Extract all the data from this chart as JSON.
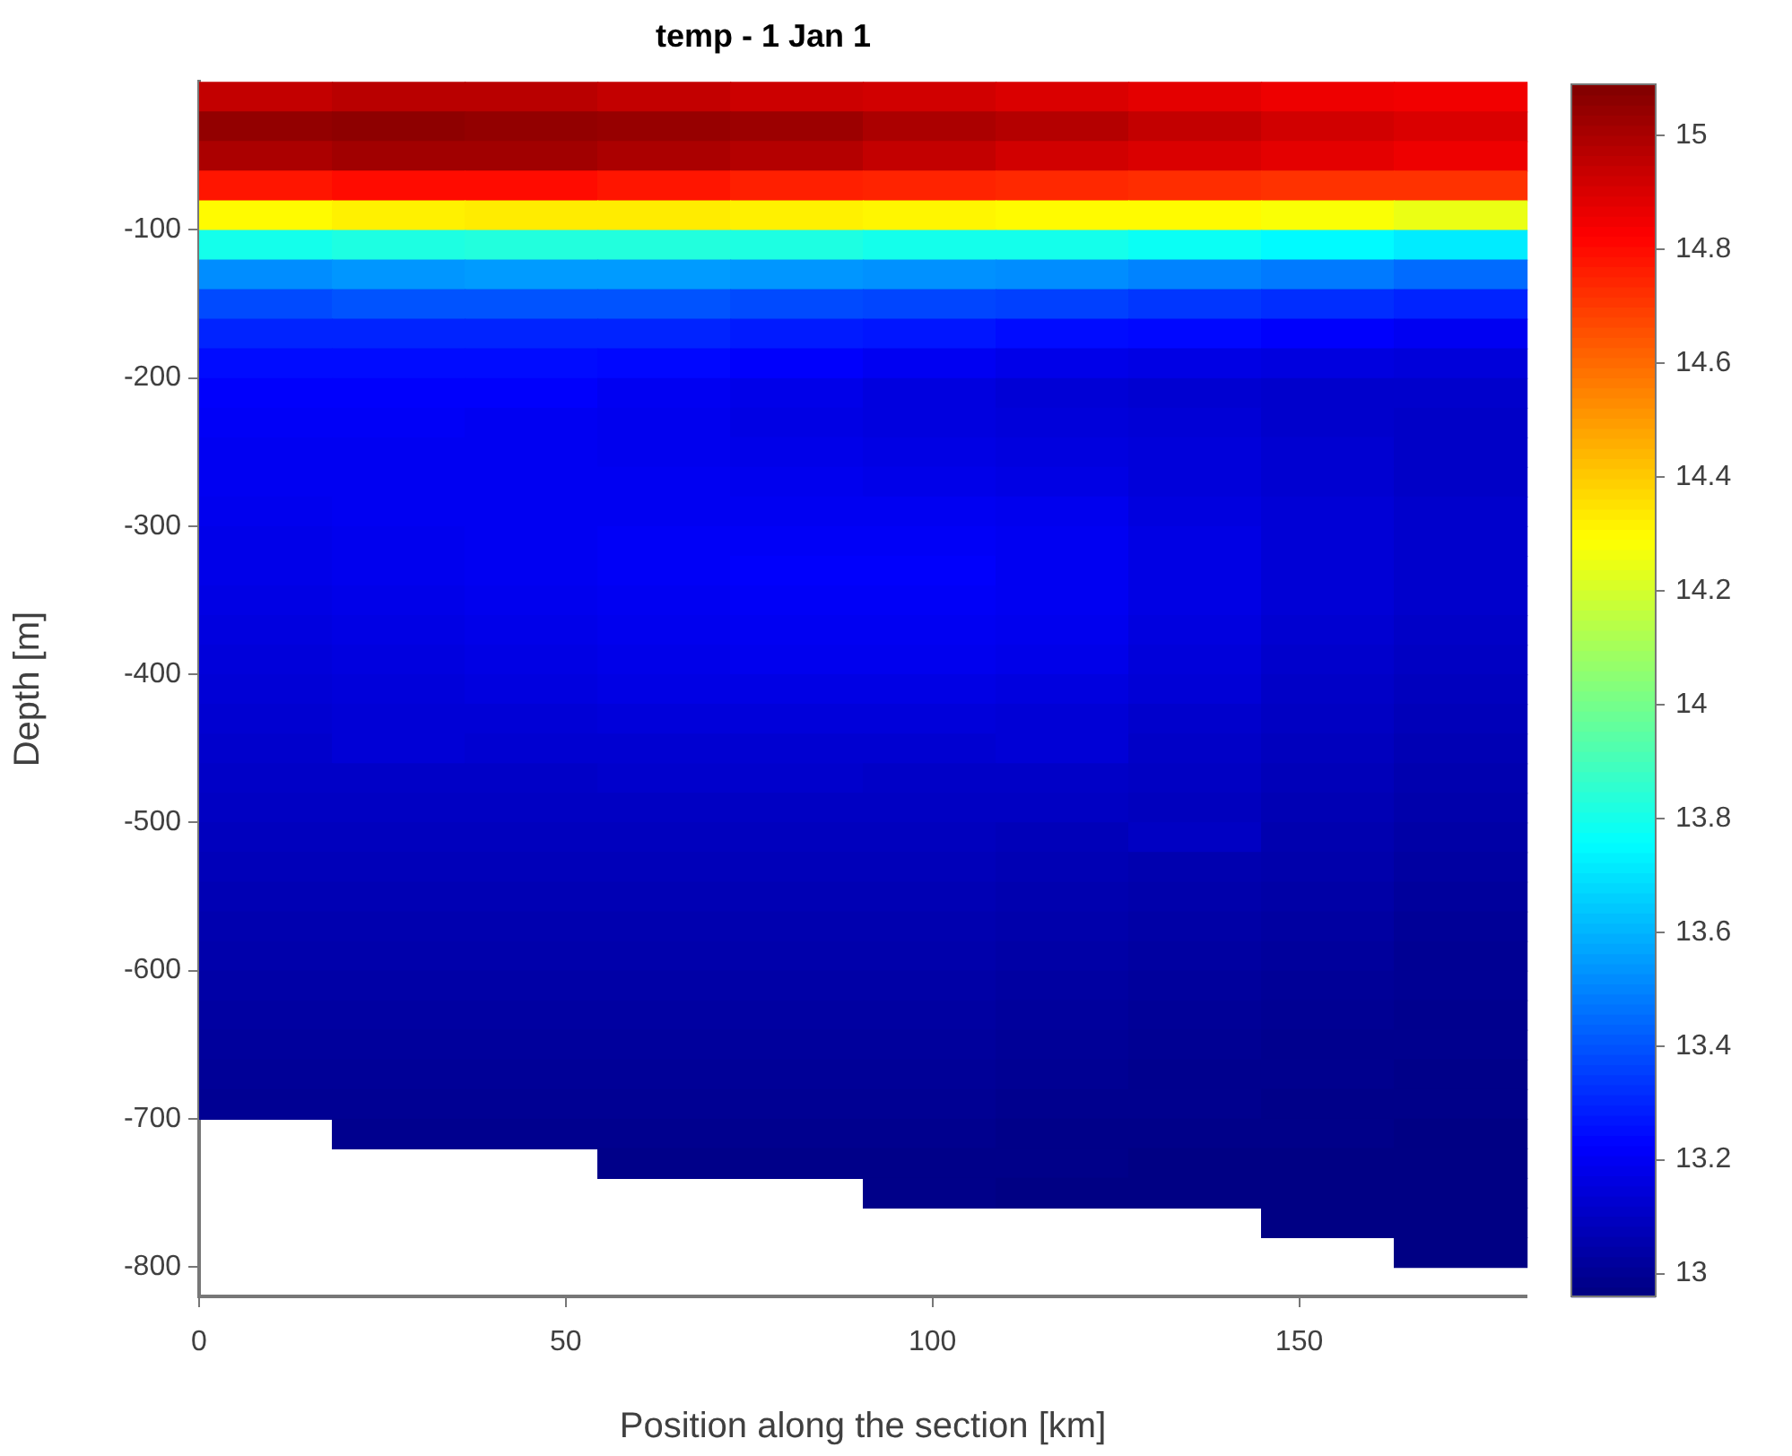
{
  "chart_data": {
    "type": "heatmap",
    "title": "temp - 1 Jan 1",
    "xlabel": "Position along the section [km]",
    "ylabel": "Depth [m]",
    "xlim": [
      0,
      181
    ],
    "xticks": [
      0,
      50,
      100,
      150
    ],
    "ylim": [
      -820,
      0
    ],
    "yticks": [
      -800,
      -700,
      -600,
      -500,
      -400,
      -300,
      -200,
      -100
    ],
    "clim": [
      12.96,
      15.09
    ],
    "cticks": [
      13,
      13.2,
      13.4,
      13.6,
      13.8,
      14,
      14.2,
      14.4,
      14.6,
      14.8,
      15
    ],
    "x": [
      9.05,
      27.15,
      45.25,
      63.35,
      81.45,
      99.55,
      117.65,
      135.75,
      153.85,
      171.95
    ],
    "y": [
      -10,
      -30,
      -50,
      -70,
      -90,
      -110,
      -130,
      -150,
      -170,
      -190,
      -210,
      -230,
      -250,
      -270,
      -290,
      -310,
      -330,
      -350,
      -370,
      -390,
      -410,
      -430,
      -450,
      -470,
      -490,
      -510,
      -530,
      -550,
      -570,
      -590,
      -610,
      -630,
      -650,
      -670,
      -690,
      -710,
      -730,
      -750,
      -770,
      -790
    ],
    "cells": [
      [
        14.95,
        14.97,
        14.97,
        14.95,
        14.93,
        14.92,
        14.9,
        14.88,
        14.86,
        14.85
      ],
      [
        15.05,
        15.06,
        15.05,
        15.04,
        15.03,
        15.0,
        14.98,
        14.95,
        14.92,
        14.9
      ],
      [
        15.0,
        15.02,
        15.02,
        15.0,
        14.98,
        14.95,
        14.92,
        14.9,
        14.88,
        14.86
      ],
      [
        14.78,
        14.8,
        14.8,
        14.78,
        14.76,
        14.75,
        14.74,
        14.73,
        14.72,
        14.72
      ],
      [
        14.3,
        14.32,
        14.33,
        14.33,
        14.32,
        14.31,
        14.3,
        14.3,
        14.28,
        14.25
      ],
      [
        13.8,
        13.82,
        13.83,
        13.83,
        13.82,
        13.8,
        13.8,
        13.78,
        13.75,
        13.72
      ],
      [
        13.52,
        13.54,
        13.55,
        13.55,
        13.54,
        13.53,
        13.52,
        13.5,
        13.48,
        13.45
      ],
      [
        13.38,
        13.4,
        13.4,
        13.4,
        13.38,
        13.37,
        13.36,
        13.34,
        13.32,
        13.3
      ],
      [
        13.3,
        13.3,
        13.3,
        13.3,
        13.28,
        13.27,
        13.25,
        13.24,
        13.22,
        13.2
      ],
      [
        13.25,
        13.25,
        13.25,
        13.24,
        13.22,
        13.2,
        13.18,
        13.17,
        13.16,
        13.15
      ],
      [
        13.22,
        13.22,
        13.22,
        13.2,
        13.18,
        13.16,
        13.14,
        13.13,
        13.12,
        13.12
      ],
      [
        13.21,
        13.21,
        13.2,
        13.19,
        13.17,
        13.16,
        13.15,
        13.14,
        13.12,
        13.11
      ],
      [
        13.2,
        13.2,
        13.2,
        13.19,
        13.18,
        13.17,
        13.16,
        13.15,
        13.13,
        13.11
      ],
      [
        13.2,
        13.2,
        13.2,
        13.2,
        13.19,
        13.18,
        13.17,
        13.15,
        13.13,
        13.11
      ],
      [
        13.19,
        13.2,
        13.2,
        13.2,
        13.2,
        13.2,
        13.19,
        13.16,
        13.14,
        13.12
      ],
      [
        13.18,
        13.19,
        13.2,
        13.21,
        13.21,
        13.21,
        13.2,
        13.17,
        13.14,
        13.12
      ],
      [
        13.18,
        13.19,
        13.2,
        13.21,
        13.22,
        13.22,
        13.2,
        13.17,
        13.14,
        13.12
      ],
      [
        13.17,
        13.18,
        13.19,
        13.2,
        13.21,
        13.21,
        13.2,
        13.17,
        13.14,
        13.12
      ],
      [
        13.16,
        13.17,
        13.18,
        13.19,
        13.2,
        13.2,
        13.19,
        13.16,
        13.13,
        13.11
      ],
      [
        13.15,
        13.16,
        13.17,
        13.18,
        13.19,
        13.19,
        13.18,
        13.15,
        13.12,
        13.1
      ],
      [
        13.14,
        13.15,
        13.16,
        13.17,
        13.17,
        13.17,
        13.16,
        13.14,
        13.11,
        13.09
      ],
      [
        13.13,
        13.14,
        13.14,
        13.15,
        13.15,
        13.15,
        13.14,
        13.12,
        13.1,
        13.08
      ],
      [
        13.12,
        13.14,
        13.13,
        13.13,
        13.13,
        13.13,
        13.14,
        13.11,
        13.09,
        13.07
      ],
      [
        13.11,
        13.11,
        13.11,
        13.12,
        13.12,
        13.11,
        13.11,
        13.1,
        13.08,
        13.06
      ],
      [
        13.1,
        13.1,
        13.1,
        13.1,
        13.1,
        13.1,
        13.1,
        13.09,
        13.07,
        13.05
      ],
      [
        13.09,
        13.09,
        13.09,
        13.09,
        13.09,
        13.09,
        13.08,
        13.1,
        13.06,
        13.04
      ],
      [
        13.08,
        13.08,
        13.08,
        13.08,
        13.08,
        13.08,
        13.07,
        13.06,
        13.05,
        13.03
      ],
      [
        13.07,
        13.07,
        13.07,
        13.07,
        13.07,
        13.07,
        13.06,
        13.05,
        13.04,
        13.02
      ],
      [
        13.06,
        13.06,
        13.06,
        13.06,
        13.06,
        13.06,
        13.05,
        13.04,
        13.03,
        13.01
      ],
      [
        13.05,
        13.05,
        13.05,
        13.05,
        13.05,
        13.05,
        13.04,
        13.03,
        13.02,
        13.0
      ],
      [
        13.04,
        13.04,
        13.04,
        13.04,
        13.04,
        13.04,
        13.03,
        13.02,
        13.01,
        13.0
      ],
      [
        13.03,
        13.03,
        13.03,
        13.03,
        13.03,
        13.03,
        13.02,
        13.01,
        13.0,
        12.99
      ],
      [
        13.02,
        13.02,
        13.02,
        13.02,
        13.02,
        13.02,
        13.01,
        13.0,
        12.99,
        12.99
      ],
      [
        13.01,
        13.01,
        13.01,
        13.01,
        13.01,
        13.01,
        13.0,
        12.99,
        12.99,
        12.98
      ],
      [
        13.0,
        13.0,
        13.0,
        13.0,
        13.0,
        13.0,
        12.99,
        12.99,
        12.98,
        12.98
      ],
      [
        null,
        12.99,
        12.99,
        12.99,
        12.99,
        12.99,
        12.98,
        12.98,
        12.98,
        12.97
      ],
      [
        null,
        null,
        null,
        12.98,
        12.98,
        12.98,
        12.98,
        12.97,
        12.97,
        12.97
      ],
      [
        null,
        null,
        null,
        null,
        null,
        12.98,
        12.97,
        12.97,
        12.97,
        12.97
      ],
      [
        null,
        null,
        null,
        null,
        null,
        null,
        null,
        null,
        12.97,
        12.97
      ],
      [
        null,
        null,
        null,
        null,
        null,
        null,
        null,
        null,
        null,
        12.97
      ]
    ]
  }
}
